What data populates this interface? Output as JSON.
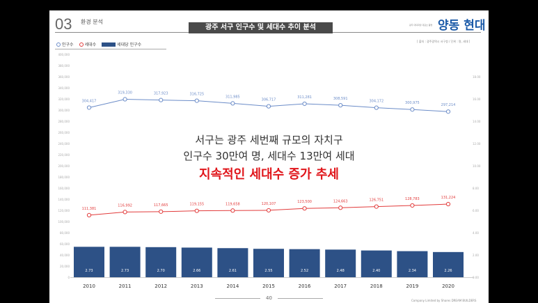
{
  "header": {
    "section_number": "03",
    "section_label": "환경 분석",
    "title": "광주 서구 인구수 및 세대수 추이 분석",
    "brand_tagline": "광주 대덕화정 대표브 품명",
    "brand_name": "양동 현대"
  },
  "source": "[ 출처 : 광주광역시 서구청 / 단위 : 명, 세대 ]",
  "message": {
    "line1": "서구는 광주 세번째 규모의 자치구",
    "line2": "인구수 30만여 명, 세대수 13만여 세대",
    "line3": "지속적인 세대수 증가 추세"
  },
  "page_number": "40",
  "copyright": "Company Limited by Shares DREAM BUILDERS",
  "colors": {
    "population": "#6b8cc8",
    "households": "#e23b3b",
    "bars": "#2d5186"
  },
  "chart_data": {
    "type": "bar+line",
    "categories": [
      "2010",
      "2011",
      "2012",
      "2013",
      "2014",
      "2015",
      "2016",
      "2017",
      "2018",
      "2019",
      "2020"
    ],
    "series": [
      {
        "name": "인구수",
        "type": "line",
        "axis": "left",
        "values": [
          304417,
          319330,
          317923,
          316725,
          311985,
          306717,
          311281,
          308591,
          304172,
          300975,
          297214
        ],
        "labels": [
          "304,417",
          "319,330",
          "317,923",
          "316,725",
          "311,985",
          "306,717",
          "311,281",
          "308,591",
          "304,172",
          "300,975",
          "297,214"
        ]
      },
      {
        "name": "세대수",
        "type": "line",
        "axis": "left",
        "values": [
          111381,
          116992,
          117665,
          119155,
          119658,
          120107,
          123500,
          124663,
          126751,
          128783,
          131224
        ],
        "labels": [
          "111,381",
          "116,992",
          "117,665",
          "119,155",
          "119,658",
          "120,107",
          "123,500",
          "124,663",
          "126,751",
          "128,783",
          "131,224"
        ]
      },
      {
        "name": "세대당 인구수",
        "type": "bar",
        "axis": "right",
        "values": [
          2.73,
          2.73,
          2.7,
          2.66,
          2.61,
          2.55,
          2.52,
          2.48,
          2.4,
          2.34,
          2.26
        ],
        "labels": [
          "2.73",
          "2.73",
          "2.70",
          "2.66",
          "2.61",
          "2.55",
          "2.52",
          "2.48",
          "2.40",
          "2.34",
          "2.26"
        ]
      }
    ],
    "ylim_left": [
      0,
      400000
    ],
    "yticks_left": [
      "400,000",
      "380,000",
      "360,000",
      "340,000",
      "320,000",
      "300,000",
      "280,000",
      "260,000",
      "240,000",
      "220,000",
      "200,000",
      "180,000",
      "160,000",
      "140,000",
      "120,000",
      "100,000",
      "80,000",
      "60,000",
      "40,000",
      "20,000",
      "0"
    ],
    "ylim_right": [
      0,
      20
    ],
    "yticks_right": [
      "18.00",
      "16.00",
      "14.00",
      "12.00",
      "10.00",
      "8.00",
      "6.00",
      "4.00",
      "2.00",
      "0.00"
    ]
  }
}
